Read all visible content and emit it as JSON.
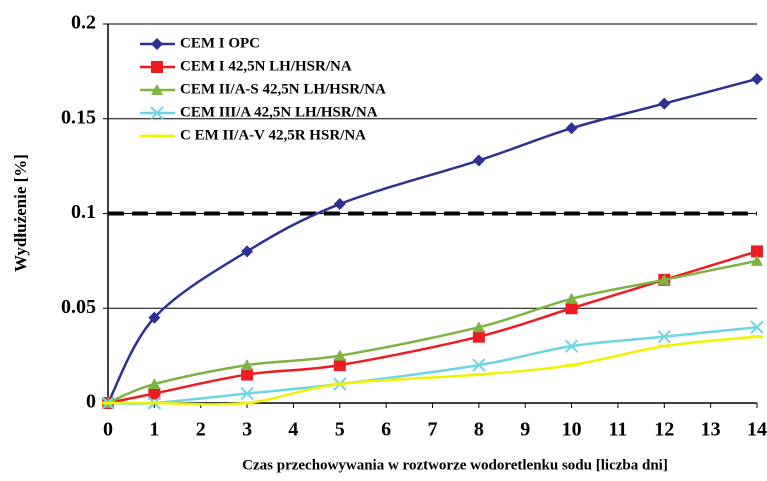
{
  "chart_data": {
    "type": "line",
    "x": [
      0,
      1,
      3,
      5,
      8,
      10,
      12,
      14
    ],
    "xlabel": "Czas przechowywania w roztworze wodoretlenku sodu [liczba dni]",
    "ylabel": "Wydłużenie [%]",
    "xlim": [
      0,
      14
    ],
    "xticks": [
      0,
      1,
      2,
      3,
      4,
      5,
      6,
      7,
      8,
      9,
      10,
      11,
      12,
      13,
      14
    ],
    "ylim": [
      0,
      0.2
    ],
    "yticks": [
      0,
      0.05,
      0.1,
      0.15,
      0.2
    ],
    "grid": true,
    "legend": "upper left",
    "threshold": 0.1,
    "series": [
      {
        "name": "CEM I OPC",
        "color": "#2e3192",
        "marker": "diamond",
        "values": [
          0,
          0.045,
          0.08,
          0.105,
          0.128,
          0.145,
          0.158,
          0.171
        ]
      },
      {
        "name": "CEM I 42,5N  LH/HSR/NA",
        "color": "#ed1c24",
        "marker": "square",
        "values": [
          0,
          0.005,
          0.015,
          0.02,
          0.035,
          0.05,
          0.065,
          0.08
        ]
      },
      {
        "name": "CEM II/A-S 42,5N LH/HSR/NA",
        "color": "#7cb342",
        "marker": "triangle",
        "values": [
          0,
          0.01,
          0.02,
          0.025,
          0.04,
          0.055,
          0.065,
          0.075
        ]
      },
      {
        "name": "CEM III/A 42,5N LH/HSR/NA",
        "color": "#6fd3e8",
        "marker": "x",
        "values": [
          0,
          0,
          0.005,
          0.01,
          0.02,
          0.03,
          0.035,
          0.04
        ]
      },
      {
        "name": "C EM II/A-V 42,5R HSR/NA",
        "color": "#f2f200",
        "marker": "dash",
        "values": [
          0,
          0,
          0,
          0.01,
          0.015,
          0.02,
          0.03,
          0.035
        ]
      }
    ]
  }
}
